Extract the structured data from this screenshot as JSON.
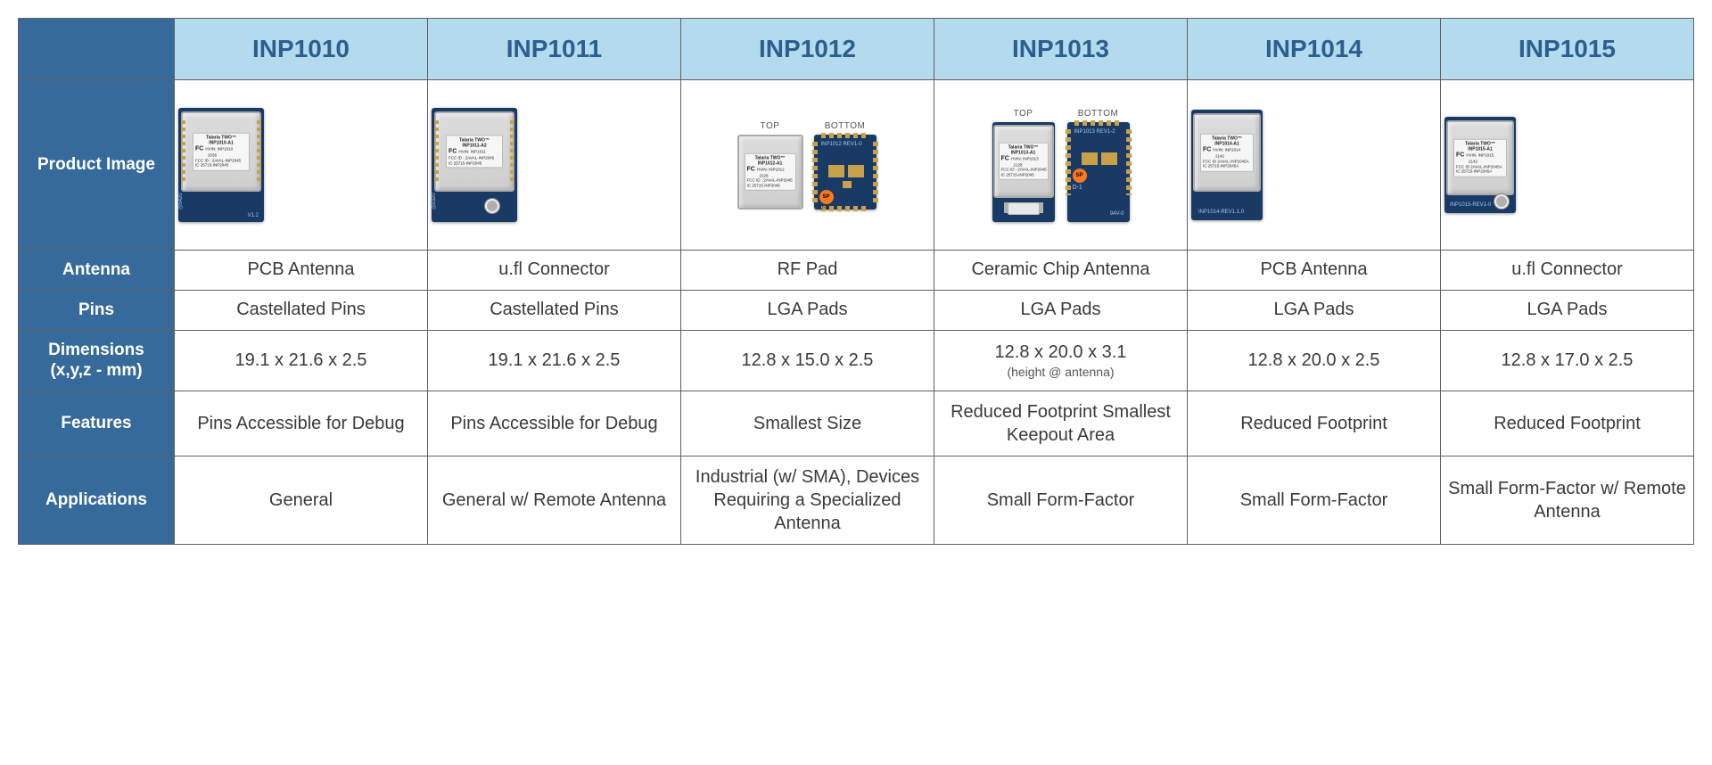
{
  "header_row": {
    "labels": [
      "INP1010",
      "INP1011",
      "INP1012",
      "INP1013",
      "INP1014",
      "INP1015"
    ],
    "bg_color": "#b4dbed",
    "text_color": "#2a5f8f",
    "font_size_pt": 21
  },
  "row_label_column": {
    "bg_color": "#366a9a",
    "text_color": "#ffffff",
    "font_size_pt": 14
  },
  "border_color": "#606060",
  "body_text_color": "#3a3a3a",
  "row_labels": {
    "image": "Product Image",
    "antenna": "Antenna",
    "pins": "Pins",
    "dims": "Dimensions\n(x,y,z - mm)",
    "features": "Features",
    "apps": "Applications"
  },
  "products": {
    "INP1010": {
      "image_variant": "castellated_pcb",
      "label_model": "INP1010-A1",
      "label_hvin": "HVIN: INP1010",
      "label_date": "2036",
      "antenna": "PCB Antenna",
      "pins": "Castellated Pins",
      "dimensions": "19.1 x 21.6 x 2.5",
      "dimensions_note": "",
      "features": "Pins Accessible for Debug",
      "applications": "General"
    },
    "INP1011": {
      "image_variant": "castellated_ufl",
      "label_model": "INP1011-A2",
      "label_hvin": "HVIN: INP1011",
      "label_date": "",
      "antenna": "u.fl Connector",
      "pins": "Castellated Pins",
      "dimensions": "19.1 x 21.6 x 2.5",
      "dimensions_note": "",
      "features": "Pins Accessible for Debug",
      "applications": "General w/ Remote Antenna"
    },
    "INP1012": {
      "image_variant": "lga_topbottom_rfpad",
      "label_model": "INP1012-A1",
      "label_hvin": "HVIN: INP1012",
      "label_date": "2128",
      "bottom_silk": "INP1012  REV1-0",
      "antenna": "RF Pad",
      "pins": "LGA Pads",
      "dimensions": "12.8 x 15.0 x 2.5",
      "dimensions_note": "",
      "features": "Smallest Size",
      "applications": "Industrial (w/ SMA), Devices Requiring a Specialized Antenna"
    },
    "INP1013": {
      "image_variant": "lga_topbottom_chipant",
      "label_model": "INP1013-A1",
      "label_hvin": "HVIN: INP1013",
      "label_date": "2128",
      "bottom_silk": "INP1013  REV1-2",
      "bottom_mark": "94V-0",
      "antenna": "Ceramic Chip Antenna",
      "pins": "LGA Pads",
      "dimensions": "12.8 x 20.0 x 3.1",
      "dimensions_note": "(height @ antenna)",
      "features": "Reduced Footprint Smallest Keepout Area",
      "applications": "Small Form-Factor"
    },
    "INP1014": {
      "image_variant": "lga_pcbant",
      "label_model": "INP1014-A1",
      "label_hvin": "HVIN: INP1014",
      "label_date": "2142",
      "bottom_silk": "INP1014-REV1.1.0",
      "antenna": "PCB Antenna",
      "pins": "LGA Pads",
      "dimensions": "12.8 x 20.0 x 2.5",
      "dimensions_note": "",
      "features": "Reduced Footprint",
      "applications": "Small Form-Factor"
    },
    "INP1015": {
      "image_variant": "lga_ufl",
      "label_model": "INP1015-A1",
      "label_hvin": "HVIN: INP1015",
      "label_date": "2142",
      "bottom_silk": "INP1015-REV1-0",
      "antenna": "u.fl Connector",
      "pins": "LGA Pads",
      "dimensions": "12.8 x 17.0 x 2.5",
      "dimensions_note": "",
      "features": "Reduced Footprint",
      "applications": "Small Form-Factor w/ Remote Antenna"
    }
  },
  "fcc_common": {
    "brand": "Talaria TWO™",
    "fcc_id": "FCC ID : 2AVAL-INP2045",
    "ic": "IC   25715-INP2045",
    "fcc_id_a": "FCC ID 2AVAL-INP2045A",
    "ic_a": "IC 25715-INP2045A"
  },
  "tb_labels": {
    "top": "TOP",
    "bottom": "BOTTOM"
  },
  "sp_text": "SP",
  "sp_sub": "D-1"
}
